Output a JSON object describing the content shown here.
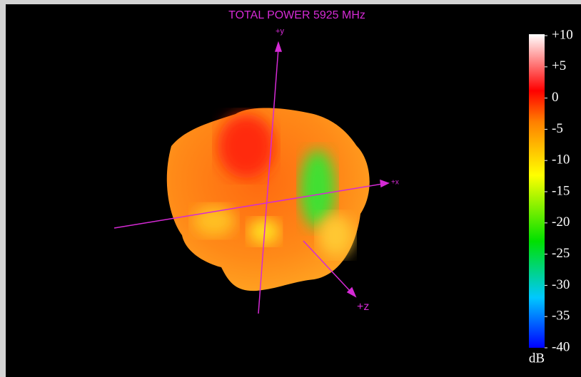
{
  "title": "TOTAL POWER 5925 MHz",
  "axes": {
    "y": "+y",
    "x": "+x",
    "z": "+z"
  },
  "colorbar": {
    "unit": "dB",
    "lim": [
      -40,
      10
    ],
    "ticks": [
      {
        "value": 10,
        "label": "+10"
      },
      {
        "value": 5,
        "label": "+5"
      },
      0,
      -5,
      -10,
      -15,
      -20,
      -25,
      -30,
      -35,
      -40
    ]
  }
}
